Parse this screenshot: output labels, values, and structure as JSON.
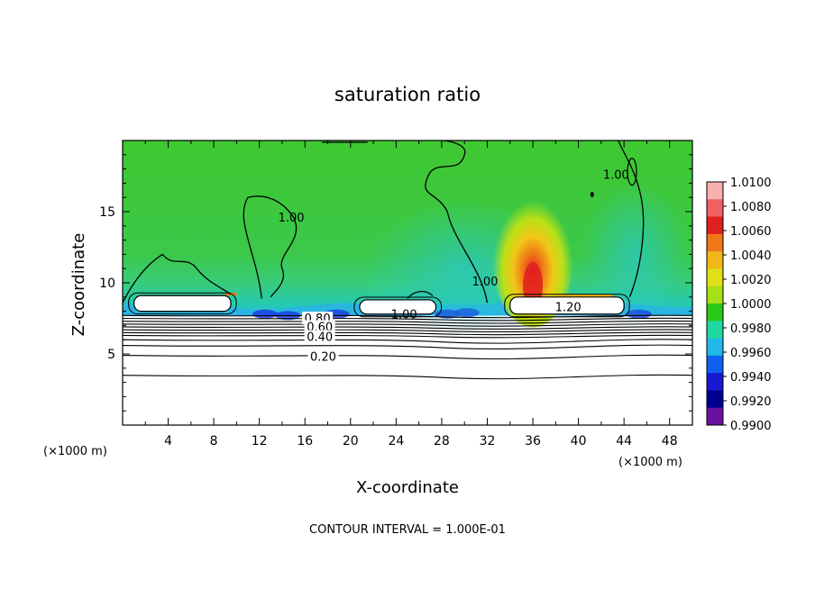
{
  "chart_data": {
    "type": "heatmap",
    "title": "saturation ratio",
    "xlabel": "X-coordinate",
    "ylabel": "Z-coordinate",
    "x_unit_left": "(×1000 m)",
    "x_unit_right": "(×1000 m)",
    "xlim": [
      0,
      50
    ],
    "ylim": [
      0,
      20
    ],
    "x_ticks": [
      4,
      8,
      12,
      16,
      20,
      24,
      28,
      32,
      36,
      40,
      44,
      48
    ],
    "y_ticks": [
      5,
      10,
      15
    ],
    "footer": "CONTOUR INTERVAL = 1.000E-01",
    "colorbar": {
      "labels": [
        "1.0100",
        "1.0080",
        "1.0060",
        "1.0040",
        "1.0020",
        "1.0000",
        "0.9980",
        "0.9960",
        "0.9940",
        "0.9920",
        "0.9900"
      ],
      "colors": [
        "#f7b0b0",
        "#f06060",
        "#e02020",
        "#f07818",
        "#f0b818",
        "#e0e018",
        "#a8e018",
        "#28c818",
        "#20d8a0",
        "#20b8e8",
        "#1060f0",
        "#1818d0",
        "#000090",
        "#6a10a0"
      ]
    },
    "contour_labels": [
      {
        "text": "1.00",
        "x": 14.8,
        "y": 14.5
      },
      {
        "text": "1.00",
        "x": 43.3,
        "y": 17.5
      },
      {
        "text": "1.00",
        "x": 31.8,
        "y": 10.0
      },
      {
        "text": "1.00",
        "x": 24.7,
        "y": 7.7
      },
      {
        "text": "1.20",
        "x": 39.1,
        "y": 8.2
      },
      {
        "text": "0.80",
        "x": 17.1,
        "y": 7.4
      },
      {
        "text": "0.60",
        "x": 17.3,
        "y": 6.8
      },
      {
        "text": "0.40",
        "x": 17.3,
        "y": 6.1
      },
      {
        "text": "0.20",
        "x": 17.6,
        "y": 4.7
      }
    ],
    "layered_contours_y": [
      7.7,
      7.5,
      7.3,
      7.1,
      6.9,
      6.7,
      6.5,
      6.3,
      6.0,
      5.6,
      4.9,
      3.5
    ],
    "cloud_regions": [
      {
        "x0": 1.0,
        "x1": 9.5,
        "y0": 8.0,
        "y1": 9.1
      },
      {
        "x0": 20.8,
        "x1": 27.5,
        "y0": 7.8,
        "y1": 8.8
      },
      {
        "x0": 34.0,
        "x1": 44.0,
        "y0": 7.8,
        "y1": 9.0
      }
    ],
    "grid": false,
    "legend_position": "right"
  }
}
